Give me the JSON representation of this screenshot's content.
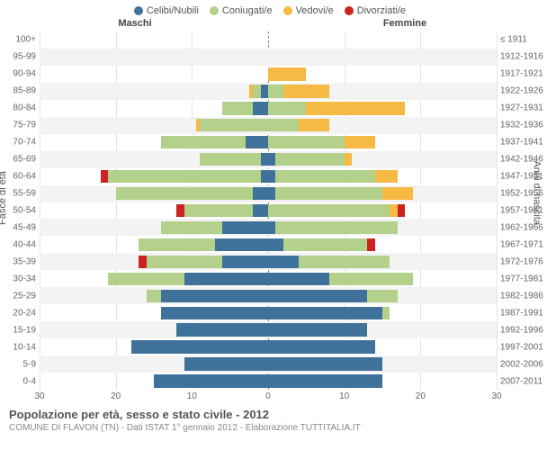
{
  "legend": [
    {
      "label": "Celibi/Nubili",
      "color": "#3f729b"
    },
    {
      "label": "Coniugati/e",
      "color": "#b3d18b"
    },
    {
      "label": "Vedovi/e",
      "color": "#f5b944"
    },
    {
      "label": "Divorziati/e",
      "color": "#cc2222"
    }
  ],
  "header_m": "Maschi",
  "header_f": "Femmine",
  "y_title_left": "Fasce di età",
  "y_title_right": "Anni di nascita",
  "x_ticks": [
    30,
    20,
    10,
    0,
    10,
    20,
    30
  ],
  "x_max": 30,
  "chart": {
    "background": "#ffffff",
    "grid_color": "#e4e4e4",
    "alt_row_color": "#f3f3f3",
    "label_fontsize": 10
  },
  "footer_title": "Popolazione per età, sesso e stato civile - 2012",
  "footer_sub": "COMUNE DI FLAVON (TN) - Dati ISTAT 1° gennaio 2012 - Elaborazione TUTTITALIA.IT",
  "rows": [
    {
      "age": "100+",
      "birth": "≤ 1911",
      "m": [
        0,
        0,
        0,
        0
      ],
      "f": [
        0,
        0,
        0,
        0
      ]
    },
    {
      "age": "95-99",
      "birth": "1912-1916",
      "m": [
        0,
        0,
        0,
        0
      ],
      "f": [
        0,
        0,
        0,
        0
      ]
    },
    {
      "age": "90-94",
      "birth": "1917-1921",
      "m": [
        0,
        0,
        0,
        0
      ],
      "f": [
        0,
        0,
        5,
        0
      ]
    },
    {
      "age": "85-89",
      "birth": "1922-1926",
      "m": [
        1,
        1,
        0.5,
        0
      ],
      "f": [
        0,
        2,
        6,
        0
      ]
    },
    {
      "age": "80-84",
      "birth": "1927-1931",
      "m": [
        2,
        4,
        0,
        0
      ],
      "f": [
        0,
        5,
        13,
        0
      ]
    },
    {
      "age": "75-79",
      "birth": "1932-1936",
      "m": [
        0,
        9,
        0.5,
        0
      ],
      "f": [
        0,
        4,
        4,
        0
      ]
    },
    {
      "age": "70-74",
      "birth": "1937-1941",
      "m": [
        3,
        11,
        0,
        0
      ],
      "f": [
        0,
        10,
        4,
        0
      ]
    },
    {
      "age": "65-69",
      "birth": "1942-1946",
      "m": [
        1,
        8,
        0,
        0
      ],
      "f": [
        1,
        9,
        1,
        0
      ]
    },
    {
      "age": "60-64",
      "birth": "1947-1951",
      "m": [
        1,
        20,
        0,
        1
      ],
      "f": [
        1,
        13,
        3,
        0
      ]
    },
    {
      "age": "55-59",
      "birth": "1952-1956",
      "m": [
        2,
        18,
        0,
        0
      ],
      "f": [
        1,
        14,
        4,
        0
      ]
    },
    {
      "age": "50-54",
      "birth": "1957-1961",
      "m": [
        2,
        9,
        0,
        1
      ],
      "f": [
        0,
        16,
        1,
        1
      ]
    },
    {
      "age": "45-49",
      "birth": "1962-1966",
      "m": [
        6,
        8,
        0,
        0
      ],
      "f": [
        1,
        16,
        0,
        0
      ]
    },
    {
      "age": "40-44",
      "birth": "1967-1971",
      "m": [
        7,
        10,
        0,
        0
      ],
      "f": [
        2,
        11,
        0,
        1
      ]
    },
    {
      "age": "35-39",
      "birth": "1972-1976",
      "m": [
        6,
        10,
        0,
        1
      ],
      "f": [
        4,
        12,
        0,
        0
      ]
    },
    {
      "age": "30-34",
      "birth": "1977-1981",
      "m": [
        11,
        10,
        0,
        0
      ],
      "f": [
        8,
        11,
        0,
        0
      ]
    },
    {
      "age": "25-29",
      "birth": "1982-1986",
      "m": [
        14,
        2,
        0,
        0
      ],
      "f": [
        13,
        4,
        0,
        0
      ]
    },
    {
      "age": "20-24",
      "birth": "1987-1991",
      "m": [
        14,
        0,
        0,
        0
      ],
      "f": [
        15,
        1,
        0,
        0
      ]
    },
    {
      "age": "15-19",
      "birth": "1992-1996",
      "m": [
        12,
        0,
        0,
        0
      ],
      "f": [
        13,
        0,
        0,
        0
      ]
    },
    {
      "age": "10-14",
      "birth": "1997-2001",
      "m": [
        18,
        0,
        0,
        0
      ],
      "f": [
        14,
        0,
        0,
        0
      ]
    },
    {
      "age": "5-9",
      "birth": "2002-2006",
      "m": [
        11,
        0,
        0,
        0
      ],
      "f": [
        15,
        0,
        0,
        0
      ]
    },
    {
      "age": "0-4",
      "birth": "2007-2011",
      "m": [
        15,
        0,
        0,
        0
      ],
      "f": [
        15,
        0,
        0,
        0
      ]
    }
  ]
}
